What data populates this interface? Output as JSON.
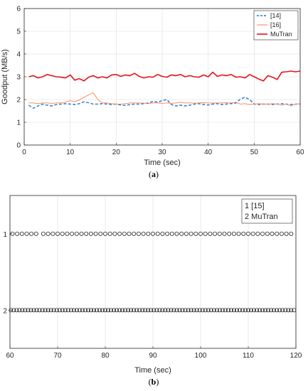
{
  "figure": {
    "panels": [
      "(a)",
      "(b)"
    ]
  },
  "chart_data": [
    {
      "type": "line",
      "label": "(a)",
      "xlabel": "Time (sec)",
      "ylabel": "Goodput (MB/s)",
      "xlim": [
        0,
        60
      ],
      "ylim": [
        0,
        6
      ],
      "xticks": [
        "0",
        "10",
        "20",
        "30",
        "40",
        "50",
        "60"
      ],
      "yticks": [
        "0",
        "1",
        "2",
        "3",
        "4",
        "5",
        "6"
      ],
      "grid": true,
      "legend_position": "top-right",
      "colors": {
        "s14": "#1f78d2",
        "s16": "#ff7f50",
        "mutran": "#e3141b"
      },
      "x": [
        1,
        2,
        3,
        4,
        5,
        6,
        7,
        8,
        9,
        10,
        11,
        12,
        13,
        14,
        15,
        16,
        17,
        18,
        19,
        20,
        21,
        22,
        23,
        24,
        25,
        26,
        27,
        28,
        29,
        30,
        31,
        32,
        33,
        34,
        35,
        36,
        37,
        38,
        39,
        40,
        41,
        42,
        43,
        44,
        45,
        46,
        47,
        48,
        49,
        50,
        51,
        52,
        53,
        54,
        55,
        56,
        57,
        58,
        59,
        60
      ],
      "series": [
        {
          "name": "[14]",
          "style": "dashed",
          "values": [
            1.75,
            1.62,
            1.72,
            1.8,
            1.75,
            1.72,
            1.78,
            1.8,
            1.82,
            1.8,
            1.78,
            1.82,
            1.9,
            1.86,
            1.8,
            1.8,
            1.82,
            1.8,
            1.78,
            1.8,
            1.76,
            1.74,
            1.78,
            1.8,
            1.8,
            1.82,
            1.85,
            1.92,
            1.88,
            1.95,
            2.0,
            1.78,
            1.72,
            1.75,
            1.72,
            1.75,
            1.8,
            1.82,
            1.78,
            1.76,
            1.8,
            1.82,
            1.78,
            1.8,
            1.82,
            1.84,
            2.02,
            2.1,
            2.0,
            1.8,
            1.78,
            1.8,
            1.8,
            1.78,
            1.8,
            1.82,
            1.8,
            1.78,
            1.8,
            1.8
          ]
        },
        {
          "name": "[16]",
          "style": "solid",
          "values": [
            1.85,
            1.85,
            1.82,
            1.85,
            1.85,
            1.83,
            1.85,
            1.85,
            1.88,
            1.95,
            1.9,
            1.98,
            2.1,
            2.2,
            2.3,
            2.0,
            1.85,
            1.85,
            1.82,
            1.8,
            1.8,
            1.82,
            1.85,
            1.85,
            1.85,
            1.84,
            1.82,
            1.85,
            1.85,
            1.83,
            1.85,
            1.83,
            1.85,
            1.88,
            1.85,
            1.85,
            1.84,
            1.85,
            1.86,
            1.85,
            1.84,
            1.85,
            1.85,
            1.86,
            1.85,
            1.88,
            1.8,
            1.82,
            1.78,
            1.8,
            1.82,
            1.8,
            1.8,
            1.82,
            1.8,
            1.75,
            1.8,
            1.72,
            1.8,
            1.82
          ]
        },
        {
          "name": "MuTran",
          "style": "solid",
          "values": [
            3.0,
            3.05,
            2.95,
            3.0,
            3.1,
            3.05,
            3.0,
            2.98,
            2.95,
            3.08,
            2.85,
            2.92,
            2.82,
            2.98,
            3.05,
            2.95,
            3.0,
            2.95,
            3.08,
            3.1,
            3.02,
            3.08,
            3.05,
            3.15,
            3.02,
            2.95,
            3.0,
            2.98,
            3.1,
            3.02,
            2.98,
            3.08,
            3.05,
            3.1,
            3.0,
            3.05,
            3.0,
            2.98,
            3.08,
            3.0,
            3.2,
            3.02,
            3.08,
            3.05,
            3.1,
            2.98,
            3.0,
            2.95,
            3.1,
            3.0,
            2.9,
            2.82,
            3.05,
            2.98,
            2.88,
            3.2,
            3.22,
            3.25,
            3.22,
            3.25
          ]
        }
      ]
    },
    {
      "type": "scatter",
      "label": "(b)",
      "xlabel": "Time (sec)",
      "ylabel": "",
      "xlim": [
        60,
        120
      ],
      "ylim": [
        2.5,
        0.5
      ],
      "xticks": [
        "60",
        "70",
        "80",
        "90",
        "100",
        "110",
        "120"
      ],
      "yticks": [
        "1",
        "2"
      ],
      "grid": true,
      "legend_position": "top-right",
      "marker": "circle",
      "legend_lines": [
        "1 [15]",
        "2 MuTran"
      ],
      "series": [
        {
          "name": "1 [15]",
          "y": 1,
          "x": [
            60.5,
            61.5,
            62.5,
            63.5,
            64.5,
            65.5,
            67,
            68,
            69,
            70,
            71,
            72,
            73,
            74,
            75,
            76,
            77,
            78,
            79,
            80,
            81,
            82,
            83,
            84,
            85,
            86,
            87,
            88,
            89,
            90,
            91,
            92,
            93,
            94,
            95,
            96,
            97,
            98,
            99,
            100,
            101,
            102,
            103,
            104,
            105,
            106,
            107,
            108,
            109,
            110,
            111,
            112,
            113,
            114,
            115,
            116,
            117,
            118,
            119
          ]
        },
        {
          "name": "2 MuTran",
          "y": 2,
          "x": [
            60.2,
            60.8,
            61.4,
            62,
            62.6,
            63.2,
            63.8,
            64.4,
            65,
            65.6,
            66.2,
            66.8,
            67.4,
            68,
            68.6,
            69.2,
            69.8,
            70.4,
            71,
            71.6,
            72.2,
            72.8,
            73.4,
            74,
            74.6,
            75.2,
            75.8,
            76.4,
            77,
            77.6,
            78.2,
            78.8,
            79.4,
            80,
            80.6,
            81.2,
            81.8,
            82.4,
            83,
            83.6,
            84.2,
            84.8,
            85.4,
            86,
            86.6,
            87.2,
            87.8,
            88.4,
            89,
            89.6,
            90.2,
            90.8,
            91.4,
            92,
            92.6,
            93.2,
            93.8,
            94.4,
            95,
            95.6,
            96.2,
            96.8,
            97.4,
            98,
            98.6,
            99.2,
            99.8,
            100.4,
            101,
            101.6,
            102.2,
            102.8,
            103.4,
            104,
            104.6,
            105.2,
            105.8,
            106.4,
            107,
            107.6,
            108.2,
            108.8,
            109.4,
            110,
            110.6,
            111.2,
            111.8,
            112.4,
            113,
            113.6,
            114.2,
            114.8,
            115.4,
            116,
            116.6,
            117.2,
            117.8,
            118.4,
            119,
            119.6
          ]
        }
      ]
    }
  ]
}
